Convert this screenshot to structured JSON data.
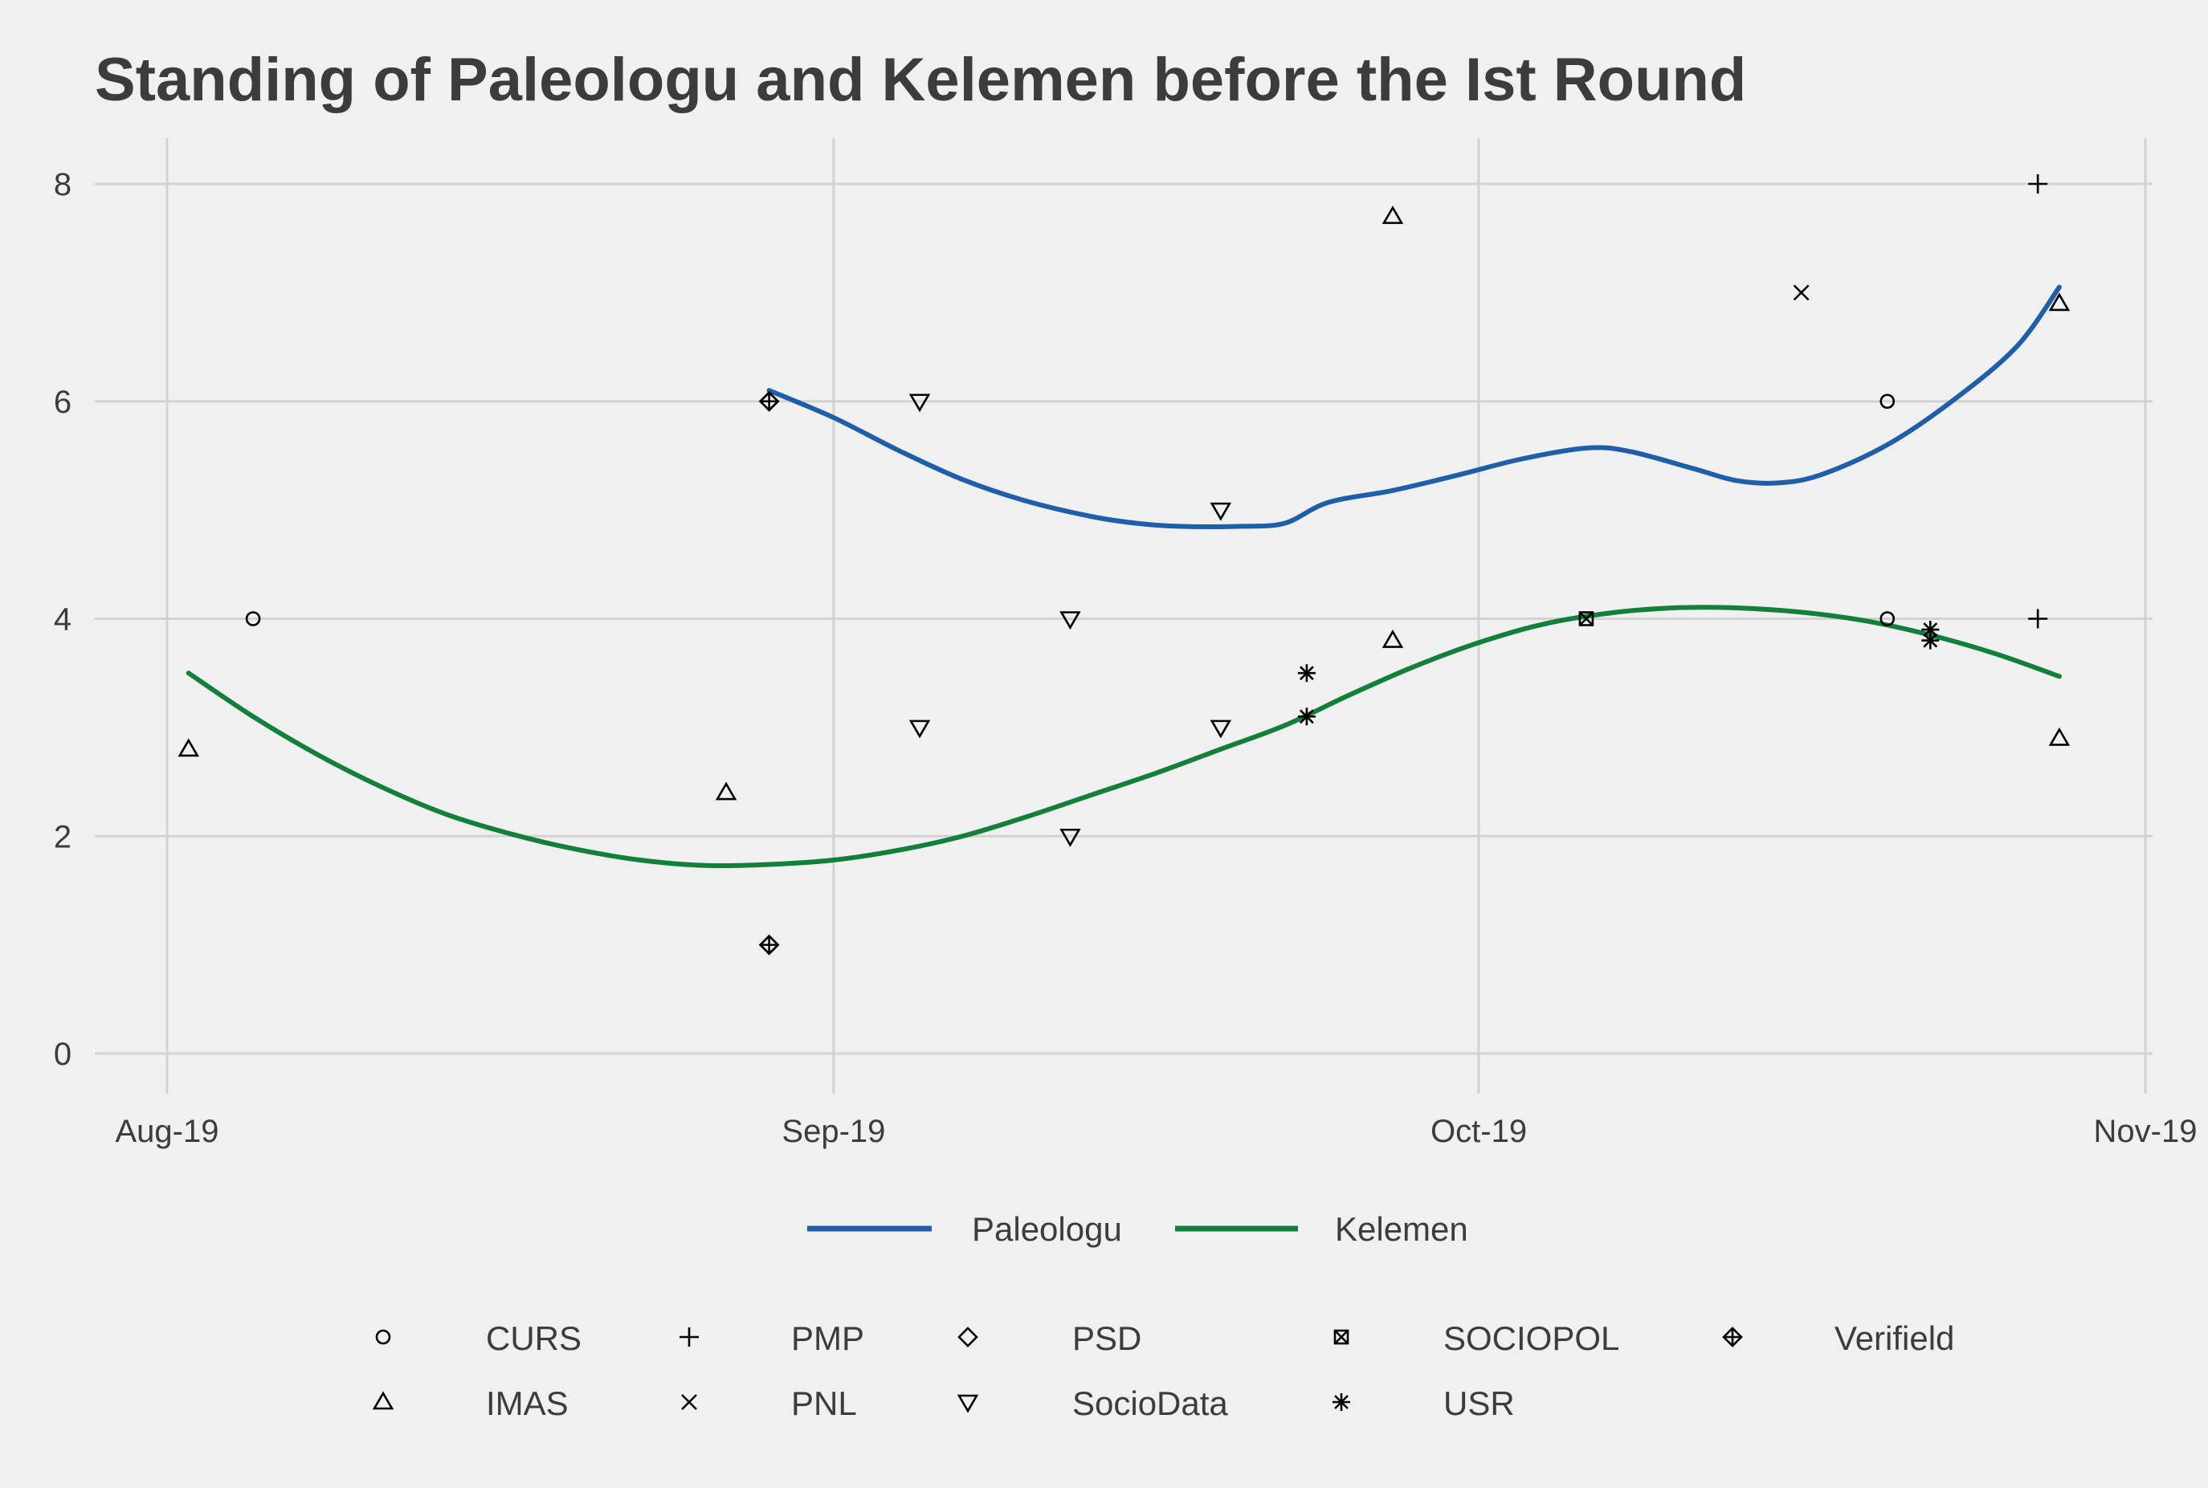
{
  "chart_data": {
    "type": "scatter",
    "title": "Standing of Paleologu and Kelemen before the Ist Round",
    "xlabel": "",
    "ylabel": "",
    "x_ticks": [
      {
        "label": "Aug-19",
        "date": "2019-08-01"
      },
      {
        "label": "Sep-19",
        "date": "2019-09-01"
      },
      {
        "label": "Oct-19",
        "date": "2019-10-01"
      },
      {
        "label": "Nov-19",
        "date": "2019-11-01"
      }
    ],
    "xlim": [
      "2019-07-29",
      "2019-11-01"
    ],
    "ylim": [
      0,
      8.4
    ],
    "y_ticks": [
      0,
      2,
      4,
      6,
      8
    ],
    "grid": true,
    "legend_position": "bottom",
    "colors": {
      "Paleologu": "#1f5ea8",
      "Kelemen": "#12803a",
      "points": "#000000",
      "background": "#f0f0f0",
      "grid": "#d2d2d2",
      "text": "#3c3c3c"
    },
    "series": [
      {
        "name": "Paleologu",
        "kind": "smooth",
        "color": "#1f5ea8",
        "points": [
          [
            "2019-08-29",
            6.1
          ],
          [
            "2019-09-01",
            5.85
          ],
          [
            "2019-09-04",
            5.55
          ],
          [
            "2019-09-07",
            5.28
          ],
          [
            "2019-09-10",
            5.08
          ],
          [
            "2019-09-13",
            4.94
          ],
          [
            "2019-09-15",
            4.88
          ],
          [
            "2019-09-17",
            4.85
          ],
          [
            "2019-09-20",
            4.85
          ],
          [
            "2019-09-22",
            4.88
          ],
          [
            "2019-09-24",
            5.07
          ],
          [
            "2019-09-27",
            5.18
          ],
          [
            "2019-09-30",
            5.32
          ],
          [
            "2019-10-03",
            5.47
          ],
          [
            "2019-10-06",
            5.57
          ],
          [
            "2019-10-08",
            5.54
          ],
          [
            "2019-10-11",
            5.38
          ],
          [
            "2019-10-13",
            5.27
          ],
          [
            "2019-10-15",
            5.25
          ],
          [
            "2019-10-17",
            5.33
          ],
          [
            "2019-10-20",
            5.6
          ],
          [
            "2019-10-23",
            6.0
          ],
          [
            "2019-10-26",
            6.5
          ],
          [
            "2019-10-28",
            7.05
          ]
        ]
      },
      {
        "name": "Kelemen",
        "kind": "smooth",
        "color": "#12803a",
        "points": [
          [
            "2019-08-02",
            3.5
          ],
          [
            "2019-08-05",
            3.1
          ],
          [
            "2019-08-08",
            2.75
          ],
          [
            "2019-08-11",
            2.45
          ],
          [
            "2019-08-14",
            2.2
          ],
          [
            "2019-08-17",
            2.02
          ],
          [
            "2019-08-20",
            1.88
          ],
          [
            "2019-08-23",
            1.78
          ],
          [
            "2019-08-26",
            1.73
          ],
          [
            "2019-08-29",
            1.74
          ],
          [
            "2019-09-01",
            1.78
          ],
          [
            "2019-09-04",
            1.87
          ],
          [
            "2019-09-07",
            2.0
          ],
          [
            "2019-09-10",
            2.18
          ],
          [
            "2019-09-13",
            2.38
          ],
          [
            "2019-09-16",
            2.58
          ],
          [
            "2019-09-19",
            2.8
          ],
          [
            "2019-09-22",
            3.02
          ],
          [
            "2019-09-25",
            3.3
          ],
          [
            "2019-09-28",
            3.56
          ],
          [
            "2019-10-01",
            3.78
          ],
          [
            "2019-10-04",
            3.95
          ],
          [
            "2019-10-07",
            4.05
          ],
          [
            "2019-10-10",
            4.1
          ],
          [
            "2019-10-13",
            4.1
          ],
          [
            "2019-10-16",
            4.06
          ],
          [
            "2019-10-19",
            3.98
          ],
          [
            "2019-10-22",
            3.85
          ],
          [
            "2019-10-25",
            3.68
          ],
          [
            "2019-10-28",
            3.47
          ]
        ]
      }
    ],
    "pollsters": [
      {
        "name": "CURS",
        "shape": "circle",
        "points": [
          [
            "2019-08-05",
            4
          ],
          [
            "2019-10-20",
            6
          ],
          [
            "2019-10-20",
            4
          ]
        ]
      },
      {
        "name": "IMAS",
        "shape": "triangle-up",
        "points": [
          [
            "2019-08-02",
            2.8
          ],
          [
            "2019-08-27",
            2.4
          ],
          [
            "2019-09-27",
            7.7
          ],
          [
            "2019-09-27",
            3.8
          ],
          [
            "2019-10-28",
            6.9
          ],
          [
            "2019-10-28",
            2.9
          ]
        ]
      },
      {
        "name": "PMP",
        "shape": "plus",
        "points": [
          [
            "2019-10-27",
            8
          ],
          [
            "2019-10-27",
            4
          ]
        ]
      },
      {
        "name": "PNL",
        "shape": "cross",
        "points": [
          [
            "2019-10-16",
            7
          ]
        ]
      },
      {
        "name": "PSD",
        "shape": "diamond",
        "points": [
          [
            "2019-08-29",
            6
          ],
          [
            "2019-08-29",
            1
          ]
        ]
      },
      {
        "name": "SocioData",
        "shape": "triangle-down",
        "points": [
          [
            "2019-09-05",
            6
          ],
          [
            "2019-09-05",
            3
          ],
          [
            "2019-09-12",
            4
          ],
          [
            "2019-09-12",
            2
          ],
          [
            "2019-09-19",
            5
          ],
          [
            "2019-09-19",
            3
          ]
        ]
      },
      {
        "name": "SOCIOPOL",
        "shape": "square-cross",
        "points": [
          [
            "2019-10-06",
            4
          ]
        ]
      },
      {
        "name": "USR",
        "shape": "asterisk",
        "points": [
          [
            "2019-09-23",
            3.5
          ],
          [
            "2019-09-23",
            3.1
          ],
          [
            "2019-10-22",
            3.9
          ],
          [
            "2019-10-22",
            3.8
          ]
        ]
      },
      {
        "name": "Verifield",
        "shape": "diamond-plus",
        "points": [
          [
            "2019-08-29",
            6
          ],
          [
            "2019-08-29",
            1
          ]
        ]
      }
    ],
    "line_legend": [
      "Paleologu",
      "Kelemen"
    ],
    "shape_legend_rows": [
      [
        "CURS",
        "PMP",
        "PSD",
        "SOCIOPOL",
        "Verifield"
      ],
      [
        "IMAS",
        "PNL",
        "SocioData",
        "USR"
      ]
    ]
  }
}
